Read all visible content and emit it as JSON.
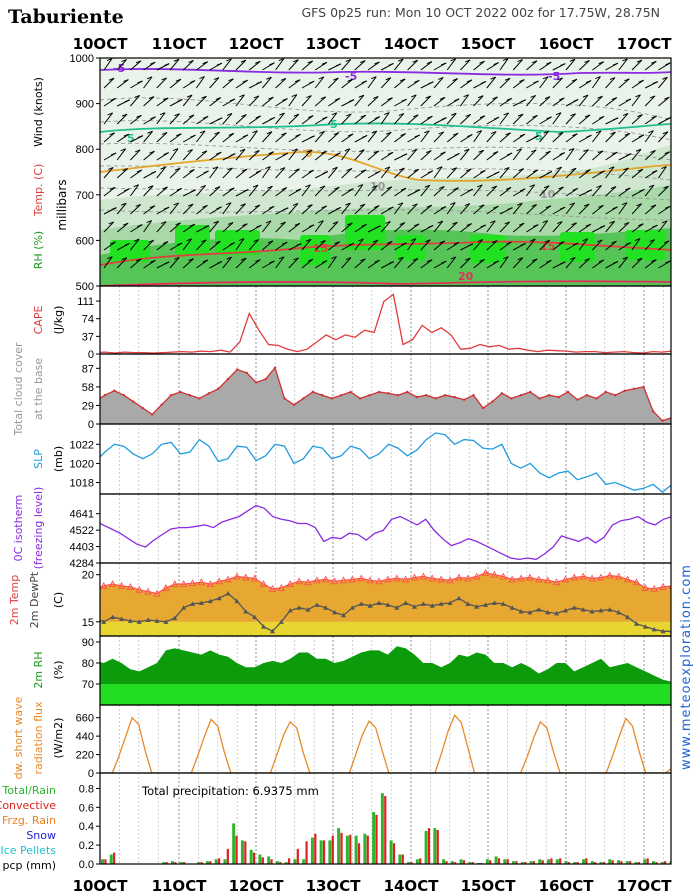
{
  "header": {
    "location": "Taburiente",
    "run_info": "GFS 0p25 run: Mon 10 OCT 2022 00z for 17.75W, 28.75N"
  },
  "dates": [
    "10OCT",
    "11OCT",
    "12OCT",
    "13OCT",
    "14OCT",
    "15OCT",
    "16OCT",
    "17OCT"
  ],
  "side_credit": "www.meteoexploration.com",
  "labels": {
    "wind": "Wind (knots)",
    "temp": "Temp. (C)",
    "rh": "RH (%)",
    "millibars": "millibars",
    "cape": "CAPE",
    "cape_unit": "(J/kg)",
    "cloud1": "Total cloud cover",
    "cloud2": "at the base",
    "slp": "SLP",
    "slp_unit": "(mb)",
    "frz1": "0C isotherm",
    "frz2": "(freezing level)",
    "t2m": "2m Temp",
    "td2m": "2m DewPt",
    "t_unit": "(C)",
    "rh2m": "2m RH",
    "rh_unit": "(%)",
    "sw1": "dw. short wave",
    "sw2": "radiation flux",
    "sw_unit": "(W/m2)",
    "pcp_total": "Total/Rain",
    "pcp_conv": "Convective",
    "pcp_frzg": "Frzg. Rain",
    "pcp_snow": "Snow",
    "pcp_ice": "Ice Pellets",
    "pcp_unit": "pcp (mm)",
    "total_precip": "Total precipitation: 6.9375 mm"
  },
  "colors": {
    "cape": "#e03c3c",
    "slp": "#1e9be0",
    "frz": "#8a2be2",
    "temp_fill": "#e6a830",
    "dew_fill": "#e8d530",
    "temp_line": "#ff5050",
    "dew_line": "#555555",
    "rh_dark": "#0b9b0b",
    "rh_light": "#22dd22",
    "sw": "#e8892a",
    "cloud": "#a9a9a9",
    "pcp_green": "#2db52d",
    "pcp_red": "#e02020",
    "side_credit": "#1f63d6"
  },
  "chart_data": [
    {
      "type": "line",
      "name": "upper-air cross section",
      "ylabel": "millibars",
      "ylim": [
        500,
        1000
      ],
      "yticks": [
        500,
        600,
        700,
        800,
        900,
        1000
      ],
      "isotherm_labels": [
        "-5",
        "-5",
        "-5",
        "5",
        "5",
        "5",
        "0",
        "15",
        "15",
        "20",
        "10",
        "10"
      ]
    },
    {
      "type": "line",
      "ylabel": "CAPE (J/kg)",
      "ylim": [
        0,
        130
      ],
      "yticks": [
        0,
        37,
        74,
        111
      ],
      "values": [
        5,
        3,
        4,
        2,
        4,
        3,
        3,
        2,
        3,
        4,
        5,
        4,
        6,
        5,
        8,
        4,
        25,
        85,
        50,
        20,
        18,
        10,
        5,
        10,
        25,
        40,
        30,
        40,
        35,
        50,
        45,
        110,
        125,
        20,
        30,
        60,
        45,
        55,
        40,
        10,
        12,
        20,
        15,
        18,
        10,
        12,
        8,
        5,
        8,
        7,
        6,
        4,
        5,
        5,
        3,
        4,
        5,
        3,
        2,
        5,
        4,
        6
      ]
    },
    {
      "type": "area",
      "ylabel": "Total cloud cover at the base",
      "ylim": [
        0,
        100
      ],
      "yticks": [
        0,
        29,
        58,
        87
      ],
      "values": [
        40,
        36,
        45,
        52,
        45,
        35,
        25,
        15,
        30,
        45,
        50,
        45,
        40,
        48,
        55,
        70,
        85,
        80,
        65,
        70,
        88,
        40,
        30,
        40,
        50,
        45,
        40,
        45,
        50,
        40,
        45,
        50,
        48,
        45,
        50,
        42,
        45,
        40,
        45,
        42,
        38,
        45,
        25,
        35,
        48,
        40,
        45,
        50,
        40,
        45,
        42,
        50,
        38,
        45,
        40,
        50,
        45,
        52,
        55,
        58,
        20,
        5,
        10
      ]
    },
    {
      "type": "line",
      "ylabel": "SLP (mb)",
      "ylim": [
        1016.8,
        1023.5
      ],
      "yticks": [
        1018,
        1020,
        1022
      ],
      "values": [
        1020.8,
        1020.2,
        1021.2,
        1022.0,
        1021.8,
        1021.0,
        1020.5,
        1021.0,
        1022.0,
        1022.2,
        1021.0,
        1021.2,
        1022.5,
        1021.8,
        1020.2,
        1020.5,
        1021.8,
        1021.7,
        1020.3,
        1020.8,
        1022.0,
        1021.8,
        1020.0,
        1020.5,
        1021.8,
        1021.6,
        1020.5,
        1020.8,
        1021.8,
        1021.5,
        1020.5,
        1021.0,
        1022.0,
        1021.6,
        1020.8,
        1021.4,
        1022.5,
        1023.2,
        1023.0,
        1022.0,
        1022.5,
        1022.4,
        1021.6,
        1021.5,
        1022.0,
        1020.0,
        1019.5,
        1020.0,
        1019.0,
        1018.5,
        1019.0,
        1019.2,
        1018.3,
        1018.6,
        1019.0,
        1017.8,
        1018.0,
        1017.6,
        1017.2,
        1017.4,
        1017.8,
        1017.0,
        1017.8
      ]
    },
    {
      "type": "line",
      "ylabel": "0C isotherm (freezing level)",
      "ylim": [
        4284,
        4740
      ],
      "yticks": [
        4284,
        4403,
        4522,
        4641
      ],
      "values": [
        4620,
        4590,
        4560,
        4530,
        4500,
        4460,
        4420,
        4400,
        4450,
        4490,
        4530,
        4540,
        4540,
        4550,
        4560,
        4540,
        4580,
        4600,
        4620,
        4660,
        4700,
        4680,
        4620,
        4600,
        4590,
        4570,
        4570,
        4540,
        4440,
        4470,
        4460,
        4500,
        4490,
        4450,
        4500,
        4520,
        4600,
        4620,
        4590,
        4560,
        4600,
        4520,
        4460,
        4410,
        4430,
        4460,
        4440,
        4410,
        4380,
        4350,
        4320,
        4310,
        4320,
        4310,
        4350,
        4400,
        4480,
        4460,
        4440,
        4470,
        4430,
        4470,
        4560,
        4590,
        4600,
        4620,
        4580,
        4560,
        4600,
        4620
      ]
    },
    {
      "type": "area",
      "ylabel": "2m Temp / 2m DewPt (C)",
      "ylim": [
        13.5,
        20.6
      ],
      "yticks": [
        15,
        20
      ],
      "series": [
        {
          "name": "2m Temp",
          "values": [
            18.7,
            18.5,
            18.8,
            19.0,
            18.8,
            18.7,
            18.4,
            18.2,
            18.0,
            18.6,
            19.0,
            19.0,
            19.1,
            19.2,
            19.0,
            19.3,
            19.5,
            19.8,
            19.7,
            19.6,
            19.0,
            18.5,
            18.6,
            19.0,
            19.3,
            19.2,
            19.4,
            19.5,
            19.3,
            19.4,
            19.5,
            19.6,
            19.4,
            19.3,
            19.5,
            19.6,
            19.5,
            19.7,
            19.8,
            19.6,
            19.5,
            19.4,
            19.7,
            19.6,
            19.8,
            20.2,
            20.0,
            19.8,
            19.5,
            19.6,
            19.7,
            19.5,
            19.4,
            19.2,
            19.5,
            19.7,
            19.8,
            19.6,
            19.7,
            19.9,
            19.8,
            19.5,
            19.2,
            18.6,
            18.5,
            18.7,
            18.8
          ]
        },
        {
          "name": "2m DewPt",
          "values": [
            15.2,
            15.3,
            15.0,
            15.5,
            15.3,
            15.1,
            15.0,
            15.2,
            15.1,
            15.0,
            15.4,
            16.5,
            16.9,
            17.0,
            17.2,
            17.5,
            18.0,
            17.2,
            16.1,
            15.5,
            14.5,
            14.0,
            15.0,
            16.2,
            16.5,
            16.3,
            16.8,
            16.5,
            16.0,
            15.7,
            16.5,
            16.9,
            16.7,
            17.0,
            16.8,
            16.5,
            17.0,
            16.6,
            16.9,
            16.7,
            16.9,
            17.0,
            17.5,
            16.9,
            16.6,
            16.8,
            17.0,
            16.9,
            16.5,
            16.1,
            16.0,
            16.3,
            16.0,
            15.9,
            16.2,
            16.5,
            16.3,
            16.1,
            16.2,
            16.3,
            16.0,
            15.5,
            14.8,
            14.5,
            14.2,
            14.0,
            14.0
          ]
        }
      ]
    },
    {
      "type": "area",
      "ylabel": "2m RH (%)",
      "ylim": [
        60,
        90
      ],
      "yticks": [
        70,
        80,
        90
      ],
      "values": [
        80,
        81,
        80,
        82,
        80,
        77,
        76,
        78,
        80,
        86,
        87,
        86,
        85,
        84,
        86,
        84,
        83,
        80,
        78,
        78,
        80,
        81,
        80,
        82,
        85,
        85,
        82,
        82,
        80,
        81,
        83,
        85,
        86,
        86,
        84,
        88,
        87,
        84,
        80,
        80,
        78,
        80,
        84,
        83,
        85,
        84,
        80,
        80,
        78,
        80,
        78,
        75,
        77,
        80,
        80,
        76,
        78,
        80,
        82,
        78,
        79,
        80,
        78,
        76,
        74,
        72,
        71
      ]
    },
    {
      "type": "line",
      "ylabel": "dw. short wave radiation flux (W/m2)",
      "ylim": [
        0,
        740
      ],
      "yticks": [
        0,
        220,
        440,
        660
      ],
      "values": [
        0,
        0,
        0,
        0,
        0,
        200,
        430,
        660,
        580,
        260,
        0,
        0,
        0,
        0,
        0,
        0,
        0,
        210,
        440,
        640,
        560,
        250,
        0,
        0,
        0,
        0,
        0,
        0,
        0,
        220,
        450,
        610,
        540,
        240,
        0,
        0,
        0,
        0,
        0,
        0,
        0,
        230,
        460,
        620,
        540,
        260,
        0,
        0,
        0,
        0,
        0,
        0,
        0,
        0,
        240,
        500,
        690,
        600,
        300,
        0,
        0,
        0,
        0,
        0,
        0,
        0,
        0,
        190,
        420,
        610,
        540,
        250,
        0,
        0,
        0,
        0,
        0,
        0,
        0,
        0,
        210,
        440,
        650,
        560,
        260,
        0,
        0,
        0,
        0,
        60
      ]
    },
    {
      "type": "bar",
      "ylabel": "pcp (mm)",
      "ylim": [
        0,
        0.9
      ],
      "yticks": [
        0.0,
        0.2,
        0.4,
        0.6,
        0.8
      ],
      "annotation": "Total precipitation: 6.9375 mm",
      "series": [
        {
          "name": "Total/Rain",
          "values": [
            0,
            0.02,
            0.05,
            0.1,
            0,
            0,
            0,
            0,
            0,
            0.02,
            0.03,
            0.02,
            0,
            0.02,
            0.03,
            0.05,
            0.05,
            0.43,
            0.25,
            0.15,
            0.1,
            0.08,
            0.03,
            0.02,
            0.05,
            0.05,
            0.28,
            0.25,
            0.25,
            0.38,
            0.3,
            0.3,
            0.32,
            0.55,
            0.75,
            0.25,
            0.1,
            0.02,
            0.05,
            0.35,
            0.38,
            0.05,
            0.03,
            0.05,
            0.02,
            0.01,
            0.05,
            0.08,
            0.05,
            0.03,
            0.02,
            0.03,
            0.05,
            0.05,
            0.05,
            0.03,
            0.02,
            0.05,
            0.03,
            0.02,
            0.05,
            0.04,
            0.03,
            0.02,
            0.05,
            0.03,
            0.02,
            0.03
          ]
        },
        {
          "name": "Convective",
          "values": [
            0,
            0.02,
            0.05,
            0.12,
            0,
            0,
            0,
            0,
            0,
            0.02,
            0.02,
            0.02,
            0,
            0.02,
            0.03,
            0.06,
            0.16,
            0.3,
            0.24,
            0.12,
            0.07,
            0.05,
            0.02,
            0.06,
            0.16,
            0.24,
            0.32,
            0.25,
            0.3,
            0.33,
            0.31,
            0.22,
            0.3,
            0.52,
            0.72,
            0.22,
            0.1,
            0.02,
            0.06,
            0.38,
            0.36,
            0.03,
            0.02,
            0.04,
            0.02,
            0.01,
            0.04,
            0.06,
            0.05,
            0.03,
            0.02,
            0.03,
            0.04,
            0.06,
            0.06,
            0.02,
            0.02,
            0.06,
            0.02,
            0.02,
            0.04,
            0.03,
            0.03,
            0.02,
            0.06,
            0.02,
            0.03,
            0.02
          ]
        }
      ]
    }
  ]
}
